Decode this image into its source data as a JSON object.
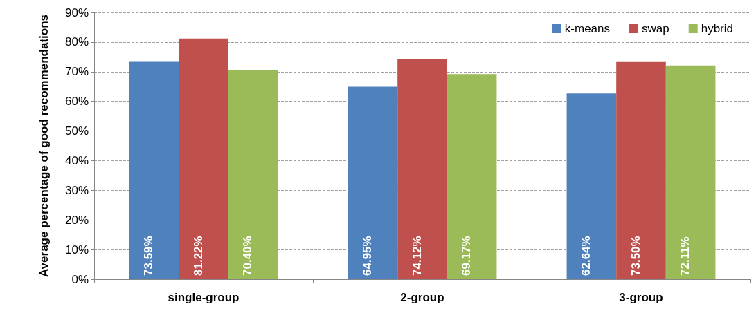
{
  "chart_data": {
    "type": "bar",
    "ylabel": "Average percentage of good recommendations",
    "categories": [
      "single-group",
      "2-group",
      "3-group"
    ],
    "series": [
      {
        "name": "k-means",
        "color": "#4f81bd",
        "values": [
          73.59,
          64.95,
          62.64
        ],
        "value_labels": [
          "73.59%",
          "64.95%",
          "62.64%"
        ]
      },
      {
        "name": "swap",
        "color": "#c0504d",
        "values": [
          81.22,
          74.12,
          73.5
        ],
        "value_labels": [
          "81.22%",
          "74.12%",
          "73.50%"
        ]
      },
      {
        "name": "hybrid",
        "color": "#9bbb59",
        "values": [
          70.4,
          69.17,
          72.11
        ],
        "value_labels": [
          "70.40%",
          "69.17%",
          "72.11%"
        ]
      }
    ],
    "ylim": [
      0,
      90
    ],
    "yticks": [
      {
        "value": 0,
        "label": "0%"
      },
      {
        "value": 10,
        "label": "10%"
      },
      {
        "value": 20,
        "label": "20%"
      },
      {
        "value": 30,
        "label": "30%"
      },
      {
        "value": 40,
        "label": "40%"
      },
      {
        "value": 50,
        "label": "50%"
      },
      {
        "value": 60,
        "label": "60%"
      },
      {
        "value": 70,
        "label": "70%"
      },
      {
        "value": 80,
        "label": "80%"
      },
      {
        "value": 90,
        "label": "90%"
      }
    ],
    "grid": "y",
    "legend": "top right"
  }
}
